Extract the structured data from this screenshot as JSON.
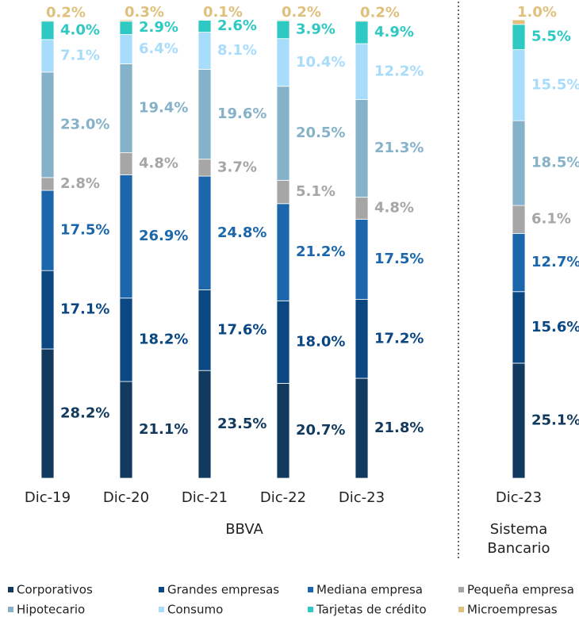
{
  "chart_data": {
    "type": "stacked_bar",
    "categories": [
      "Dic-19",
      "Dic-20",
      "Dic-21",
      "Dic-22",
      "Dic-23",
      "Dic-23"
    ],
    "groups": [
      "BBVA",
      "Sistema Bancario"
    ],
    "series": [
      {
        "name": "Corporativos",
        "color": "#123a5e",
        "values": [
          28.2,
          21.1,
          23.5,
          20.7,
          21.8,
          25.1
        ],
        "value_labels": [
          "28.2%",
          "21.1%",
          "23.5%",
          "20.7%",
          "21.8%",
          "25.1%"
        ]
      },
      {
        "name": "Grandes empresas",
        "color": "#0a4783",
        "values": [
          17.1,
          18.2,
          17.6,
          18.0,
          17.2,
          15.6
        ],
        "value_labels": [
          "17.1%",
          "18.2%",
          "17.6%",
          "18.0%",
          "17.2%",
          "15.6%"
        ]
      },
      {
        "name": "Mediana empresa",
        "color": "#1c67ab",
        "values": [
          17.5,
          26.9,
          24.8,
          21.2,
          17.5,
          12.7
        ],
        "value_labels": [
          "17.5%",
          "26.9%",
          "24.8%",
          "21.2%",
          "17.5%",
          "12.7%"
        ]
      },
      {
        "name": "Pequeña empresa",
        "color": "#a6a6a6",
        "values": [
          2.8,
          4.8,
          3.7,
          5.1,
          4.8,
          6.1
        ],
        "value_labels": [
          "2.8%",
          "4.8%",
          "3.7%",
          "5.1%",
          "4.8%",
          "6.1%"
        ]
      },
      {
        "name": "Hipotecario",
        "color": "#86b2c9",
        "values": [
          23.0,
          19.4,
          19.6,
          20.5,
          21.3,
          18.5
        ],
        "value_labels": [
          "23.0%",
          "19.4%",
          "19.6%",
          "20.5%",
          "21.3%",
          "18.5%"
        ]
      },
      {
        "name": "Consumo",
        "color": "#a8dcfb",
        "values": [
          7.1,
          6.4,
          8.1,
          10.4,
          12.2,
          15.5
        ],
        "value_labels": [
          "7.1%",
          "6.4%",
          "8.1%",
          "10.4%",
          "12.2%",
          "15.5%"
        ]
      },
      {
        "name": "Tarjetas de crédito",
        "color": "#2ec9c3",
        "values": [
          4.0,
          2.9,
          2.6,
          3.9,
          4.9,
          5.5
        ],
        "value_labels": [
          "4.0%",
          "2.9%",
          "2.6%",
          "3.9%",
          "4.9%",
          "5.5%"
        ]
      },
      {
        "name": "Microempresas",
        "color": "#dfc07c",
        "values": [
          0.2,
          0.3,
          0.1,
          0.2,
          0.2,
          1.0
        ],
        "value_labels": [
          "0.2%",
          "0.3%",
          "0.1%",
          "0.2%",
          "0.2%",
          "1.0%"
        ]
      }
    ]
  }
}
